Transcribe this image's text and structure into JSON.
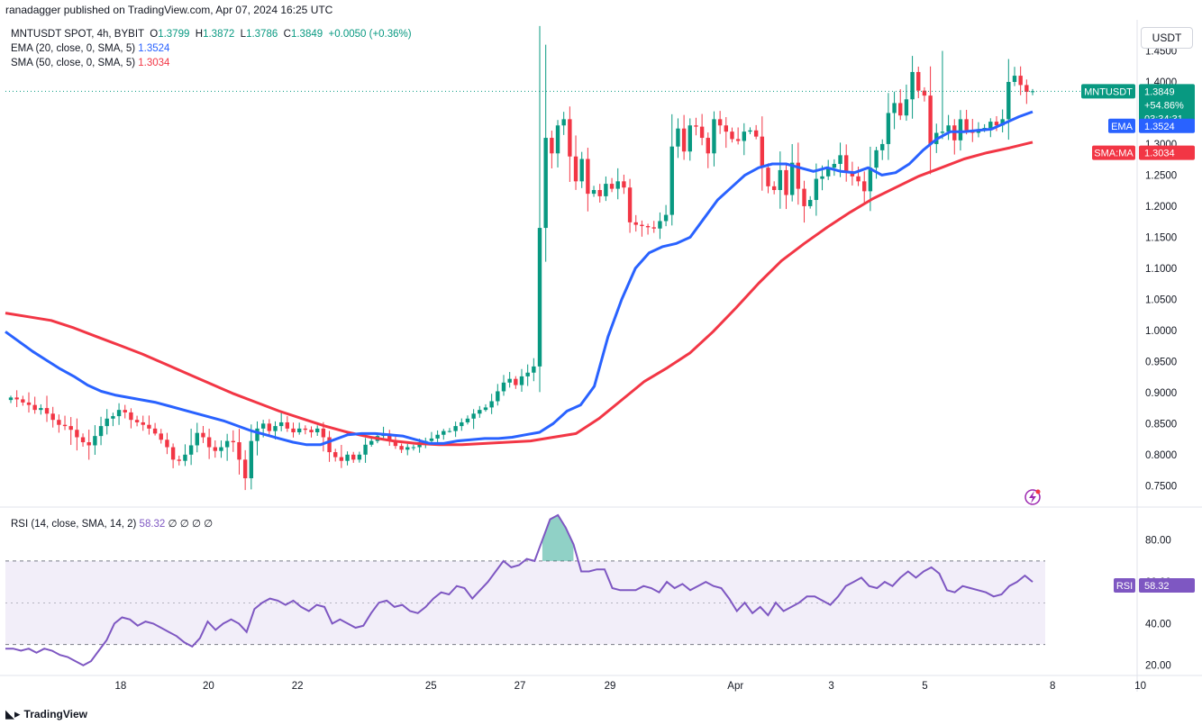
{
  "header": {
    "published": "ranadagger published on TradingView.com, Apr 07, 2024 16:25 UTC"
  },
  "legend": {
    "symbol": "MNTUSDT SPOT, 4h, BYBIT",
    "o_label": "O",
    "o": "1.3799",
    "h_label": "H",
    "h": "1.3872",
    "l_label": "L",
    "l": "1.3786",
    "c_label": "C",
    "c": "1.3849",
    "change": "+0.0050 (+0.36%)",
    "ema_label": "EMA (20, close, 0, SMA, 5)",
    "ema_value": "1.3524",
    "sma_label": "SMA (50, close, 0, SMA, 5)",
    "sma_value": "1.3034"
  },
  "rsi_legend": {
    "label": "RSI (14, close, SMA, 14, 2)",
    "value": "58.32",
    "extra": "∅ ∅ ∅ ∅"
  },
  "currency_button": "USDT",
  "price_tags": {
    "symbol": "MNTUSDT",
    "price": "1.3849",
    "change_pct": "+54.86%",
    "countdown": "03:34:31",
    "ema_label": "EMA",
    "ema_value": "1.3524",
    "sma_label": "SMA:MA",
    "sma_value": "1.3034",
    "rsi_label": "RSI",
    "rsi_value": "58.32"
  },
  "footer": {
    "brand": "TradingView",
    "logo_icon": "tradingview-logo-icon"
  },
  "colors": {
    "up": "#089981",
    "down": "#f23645",
    "ema": "#2962ff",
    "sma": "#f23645",
    "rsi": "#7e57c2"
  },
  "chart_data": {
    "type": "candlestick",
    "price_axis": {
      "ticks": [
        "1.4500",
        "1.4000",
        "1.3500",
        "1.3000",
        "1.2500",
        "1.2000",
        "1.1500",
        "1.1000",
        "1.0500",
        "1.0000",
        "0.9500",
        "0.9000",
        "0.8500",
        "0.8000",
        "0.7500"
      ],
      "range": [
        0.72,
        1.5
      ]
    },
    "time_axis": {
      "ticks": [
        "18",
        "20",
        "22",
        "25",
        "27",
        "29",
        "Apr",
        "3",
        "5",
        "8",
        "10"
      ]
    },
    "rsi_axis": {
      "ticks": [
        "80.00",
        "60.00",
        "40.00",
        "20.00"
      ],
      "range": [
        16,
        95
      ],
      "bands": [
        70,
        30
      ]
    },
    "close": [
      0.892,
      0.889,
      0.884,
      0.88,
      0.872,
      0.875,
      0.866,
      0.856,
      0.848,
      0.846,
      0.84,
      0.828,
      0.82,
      0.815,
      0.83,
      0.846,
      0.858,
      0.862,
      0.872,
      0.868,
      0.856,
      0.852,
      0.848,
      0.842,
      0.834,
      0.824,
      0.812,
      0.792,
      0.79,
      0.8,
      0.815,
      0.835,
      0.828,
      0.812,
      0.806,
      0.812,
      0.822,
      0.82,
      0.792,
      0.762,
      0.822,
      0.842,
      0.85,
      0.838,
      0.846,
      0.852,
      0.842,
      0.836,
      0.842,
      0.84,
      0.836,
      0.842,
      0.828,
      0.804,
      0.796,
      0.79,
      0.8,
      0.792,
      0.8,
      0.816,
      0.822,
      0.83,
      0.834,
      0.822,
      0.814,
      0.808,
      0.812,
      0.812,
      0.816,
      0.822,
      0.826,
      0.832,
      0.838,
      0.838,
      0.846,
      0.852,
      0.858,
      0.866,
      0.872,
      0.876,
      0.886,
      0.902,
      0.916,
      0.922,
      0.912,
      0.926,
      0.932,
      0.942,
      1.165,
      1.31,
      1.285,
      1.33,
      1.34,
      1.28,
      1.24,
      1.276,
      1.22,
      1.226,
      1.216,
      1.236,
      1.228,
      1.24,
      1.23,
      1.174,
      1.17,
      1.168,
      1.166,
      1.164,
      1.176,
      1.186,
      1.296,
      1.325,
      1.288,
      1.33,
      1.328,
      1.31,
      1.285,
      1.34,
      1.33,
      1.32,
      1.308,
      1.305,
      1.32,
      1.322,
      1.312,
      1.262,
      1.232,
      1.226,
      1.258,
      1.218,
      1.27,
      1.228,
      1.2,
      1.21,
      1.244,
      1.248,
      1.262,
      1.268,
      1.282,
      1.256,
      1.248,
      1.24,
      1.224,
      1.262,
      1.29,
      1.3,
      1.35,
      1.366,
      1.346,
      1.372,
      1.416,
      1.386,
      1.378,
      1.3,
      1.318,
      1.32,
      1.33,
      1.306,
      1.34,
      1.322,
      1.318,
      1.324,
      1.326,
      1.336,
      1.33,
      1.34,
      1.4,
      1.41,
      1.395,
      1.384,
      1.385
    ],
    "ema": [
      0.998,
      0.982,
      0.966,
      0.952,
      0.938,
      0.926,
      0.912,
      0.902,
      0.896,
      0.892,
      0.888,
      0.884,
      0.878,
      0.872,
      0.866,
      0.86,
      0.854,
      0.846,
      0.838,
      0.832,
      0.826,
      0.82,
      0.816,
      0.816,
      0.824,
      0.832,
      0.834,
      0.834,
      0.832,
      0.83,
      0.824,
      0.818,
      0.818,
      0.822,
      0.824,
      0.826,
      0.826,
      0.828,
      0.832,
      0.836,
      0.85,
      0.87,
      0.88,
      0.91,
      0.99,
      1.05,
      1.1,
      1.125,
      1.135,
      1.14,
      1.15,
      1.18,
      1.21,
      1.23,
      1.25,
      1.262,
      1.268,
      1.268,
      1.262,
      1.256,
      1.262,
      1.256,
      1.254,
      1.262,
      1.25,
      1.254,
      1.268,
      1.29,
      1.308,
      1.32,
      1.32,
      1.322,
      1.324,
      1.334,
      1.344,
      1.352
    ],
    "sma": [
      1.028,
      1.022,
      1.016,
      1.004,
      0.99,
      0.976,
      0.962,
      0.946,
      0.93,
      0.914,
      0.898,
      0.884,
      0.87,
      0.858,
      0.846,
      0.836,
      0.828,
      0.822,
      0.818,
      0.816,
      0.816,
      0.818,
      0.82,
      0.822,
      0.828,
      0.834,
      0.858,
      0.888,
      0.918,
      0.94,
      0.964,
      0.998,
      1.036,
      1.076,
      1.112,
      1.14,
      1.166,
      1.19,
      1.212,
      1.23,
      1.248,
      1.262,
      1.276,
      1.286,
      1.294,
      1.303
    ],
    "rsi": [
      28,
      28,
      27,
      28,
      26,
      28,
      27,
      25,
      24,
      22,
      20,
      22,
      27,
      32,
      40,
      43,
      42,
      39,
      41,
      40,
      38,
      36,
      34,
      31,
      29,
      33,
      41,
      37,
      40,
      42,
      40,
      36,
      47,
      50,
      52,
      51,
      49,
      51,
      48,
      46,
      49,
      48,
      40,
      42,
      40,
      38,
      39,
      45,
      50,
      51,
      48,
      49,
      46,
      45,
      48,
      52,
      55,
      54,
      58,
      57,
      52,
      56,
      60,
      65,
      70,
      67,
      68,
      71,
      70,
      80,
      90,
      92,
      86,
      78,
      65,
      65,
      66,
      66,
      57,
      56,
      56,
      56,
      58,
      57,
      55,
      60,
      57,
      59,
      56,
      58,
      60,
      58,
      57,
      52,
      46,
      50,
      45,
      48,
      44,
      50,
      46,
      48,
      50,
      53,
      53,
      51,
      49,
      53,
      58,
      60,
      62,
      58,
      57,
      60,
      58,
      62,
      65,
      62,
      65,
      67,
      64,
      56,
      55,
      58,
      57,
      56,
      55,
      53,
      54,
      58,
      60,
      63,
      60
    ],
    "labels": {
      "title": "MNTUSDT SPOT, 4h, BYBIT"
    }
  }
}
